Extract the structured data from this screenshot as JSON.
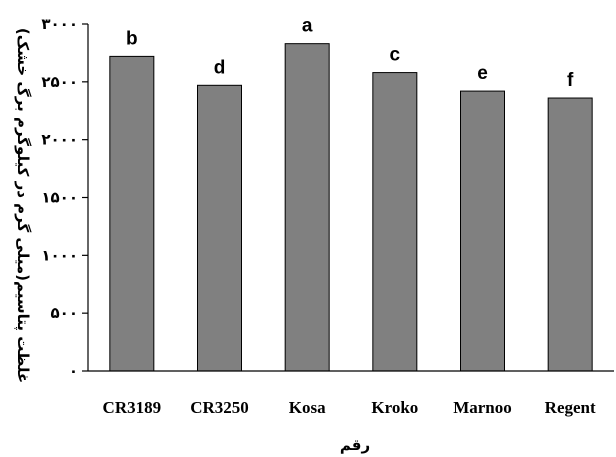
{
  "chart_data": {
    "type": "bar",
    "categories": [
      "CR3189",
      "CR3250",
      "Kosa",
      "Kroko",
      "Marnoo",
      "Regent"
    ],
    "values": [
      2720,
      2470,
      2830,
      2580,
      2420,
      2360
    ],
    "bar_labels": [
      "b",
      "d",
      "a",
      "c",
      "e",
      "f"
    ],
    "yticks": [
      0,
      500,
      1000,
      1500,
      2000,
      2500,
      3000
    ],
    "ytick_labels": [
      "۰",
      "۵۰۰",
      "۱۰۰۰",
      "۱۵۰۰",
      "۲۰۰۰",
      "۲۵۰۰",
      "۳۰۰۰"
    ],
    "ylim": [
      0,
      3000
    ],
    "xlabel": "رقم",
    "ylabel": "غلظت پتاسیم(میلی گرم در کیلوگرم برگ خشک)",
    "bar_color": "#808080",
    "bar_edge_color": "#000000",
    "grid": false
  }
}
